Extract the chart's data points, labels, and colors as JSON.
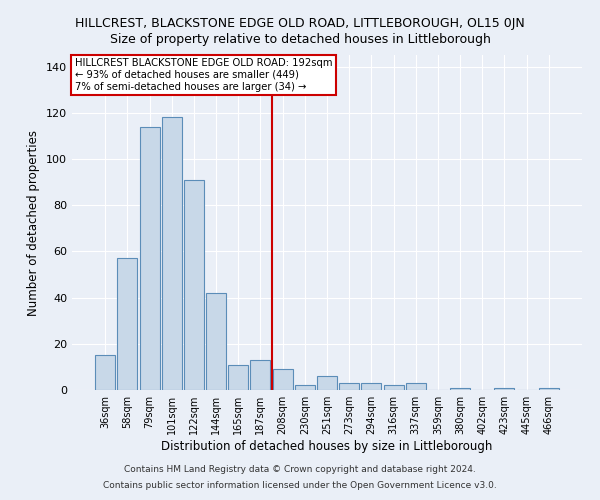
{
  "title": "HILLCREST, BLACKSTONE EDGE OLD ROAD, LITTLEBOROUGH, OL15 0JN",
  "subtitle": "Size of property relative to detached houses in Littleborough",
  "xlabel": "Distribution of detached houses by size in Littleborough",
  "ylabel": "Number of detached properties",
  "categories": [
    "36sqm",
    "58sqm",
    "79sqm",
    "101sqm",
    "122sqm",
    "144sqm",
    "165sqm",
    "187sqm",
    "208sqm",
    "230sqm",
    "251sqm",
    "273sqm",
    "294sqm",
    "316sqm",
    "337sqm",
    "359sqm",
    "380sqm",
    "402sqm",
    "423sqm",
    "445sqm",
    "466sqm"
  ],
  "values": [
    15,
    57,
    114,
    118,
    91,
    42,
    11,
    13,
    9,
    2,
    6,
    3,
    3,
    2,
    3,
    0,
    1,
    0,
    1,
    0,
    1
  ],
  "bar_color": "#c8d8e8",
  "bar_edge_color": "#5b8db8",
  "vline_x": 7.5,
  "vline_color": "#cc0000",
  "annotation_text": "HILLCREST BLACKSTONE EDGE OLD ROAD: 192sqm\n← 93% of detached houses are smaller (449)\n7% of semi-detached houses are larger (34) →",
  "annotation_box_color": "#cc0000",
  "ylim": [
    0,
    145
  ],
  "yticks": [
    0,
    20,
    40,
    60,
    80,
    100,
    120,
    140
  ],
  "background_color": "#eaeff7",
  "plot_bg_color": "#eaeff7",
  "title_fontsize": 9,
  "subtitle_fontsize": 9,
  "footer_line1": "Contains HM Land Registry data © Crown copyright and database right 2024.",
  "footer_line2": "Contains public sector information licensed under the Open Government Licence v3.0."
}
